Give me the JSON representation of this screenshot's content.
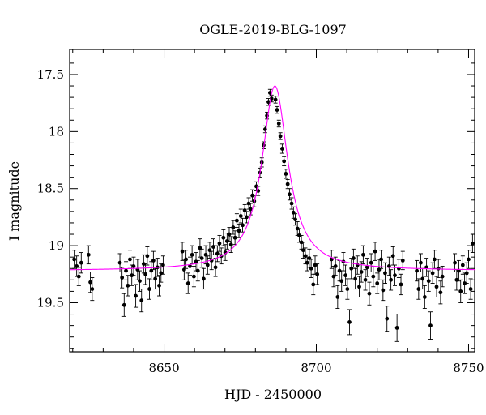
{
  "chart_data": {
    "type": "scatter",
    "title": "OGLE-2019-BLG-1097",
    "xlabel": "HJD - 2450000",
    "ylabel": "I magnitude",
    "xlim": [
      8619,
      8752
    ],
    "ylim": [
      19.93,
      17.28
    ],
    "y_inverted": true,
    "x_ticks": [
      8650,
      8700,
      8750
    ],
    "y_ticks": [
      17.5,
      18,
      18.5,
      19,
      19.5
    ],
    "x_tick_labels": [
      "8650",
      "8700",
      "8750"
    ],
    "y_tick_labels": [
      "17.5",
      "18",
      "18.5",
      "19",
      "19.5"
    ],
    "grid": false,
    "series": [
      {
        "kind": "points-with-errorbars",
        "color": "#000000",
        "points": [
          [
            8620.5,
            19.12,
            0.08
          ],
          [
            8621.3,
            19.18,
            0.09
          ],
          [
            8622.0,
            19.27,
            0.08
          ],
          [
            8622.8,
            19.15,
            0.09
          ],
          [
            8625.2,
            19.08,
            0.08
          ],
          [
            8625.8,
            19.32,
            0.09
          ],
          [
            8626.4,
            19.38,
            0.1
          ],
          [
            8635.5,
            19.15,
            0.08
          ],
          [
            8636.2,
            19.28,
            0.09
          ],
          [
            8636.9,
            19.52,
            0.1
          ],
          [
            8637.5,
            19.22,
            0.08
          ],
          [
            8638.1,
            19.35,
            0.09
          ],
          [
            8638.8,
            19.12,
            0.08
          ],
          [
            8639.4,
            19.26,
            0.09
          ],
          [
            8640.0,
            19.18,
            0.08
          ],
          [
            8640.7,
            19.44,
            0.1
          ],
          [
            8641.3,
            19.21,
            0.09
          ],
          [
            8642.0,
            19.31,
            0.09
          ],
          [
            8642.6,
            19.48,
            0.1
          ],
          [
            8643.3,
            19.16,
            0.08
          ],
          [
            8643.9,
            19.25,
            0.09
          ],
          [
            8644.5,
            19.09,
            0.08
          ],
          [
            8645.2,
            19.38,
            0.09
          ],
          [
            8645.8,
            19.22,
            0.08
          ],
          [
            8646.5,
            19.13,
            0.08
          ],
          [
            8647.1,
            19.29,
            0.09
          ],
          [
            8647.8,
            19.19,
            0.08
          ],
          [
            8648.4,
            19.35,
            0.09
          ],
          [
            8649.0,
            19.24,
            0.08
          ],
          [
            8649.7,
            19.17,
            0.08
          ],
          [
            8656.0,
            19.05,
            0.08
          ],
          [
            8656.6,
            19.21,
            0.09
          ],
          [
            8657.2,
            19.12,
            0.08
          ],
          [
            8657.9,
            19.33,
            0.09
          ],
          [
            8658.5,
            19.18,
            0.08
          ],
          [
            8659.2,
            19.08,
            0.08
          ],
          [
            8659.8,
            19.27,
            0.09
          ],
          [
            8660.5,
            19.14,
            0.08
          ],
          [
            8661.1,
            19.22,
            0.09
          ],
          [
            8661.8,
            19.02,
            0.08
          ],
          [
            8662.4,
            19.11,
            0.08
          ],
          [
            8663.0,
            19.29,
            0.09
          ],
          [
            8663.7,
            19.08,
            0.08
          ],
          [
            8664.3,
            19.17,
            0.08
          ],
          [
            8665.0,
            19.04,
            0.07
          ],
          [
            8665.6,
            19.13,
            0.08
          ],
          [
            8666.2,
            19.01,
            0.07
          ],
          [
            8666.9,
            19.19,
            0.08
          ],
          [
            8667.5,
            19.07,
            0.07
          ],
          [
            8668.2,
            18.98,
            0.07
          ],
          [
            8668.8,
            19.09,
            0.07
          ],
          [
            8669.5,
            18.93,
            0.07
          ],
          [
            8670.1,
            19.06,
            0.07
          ],
          [
            8670.7,
            18.96,
            0.07
          ],
          [
            8671.4,
            18.9,
            0.06
          ],
          [
            8672.0,
            18.99,
            0.07
          ],
          [
            8672.7,
            18.84,
            0.06
          ],
          [
            8673.3,
            18.93,
            0.06
          ],
          [
            8673.9,
            18.78,
            0.06
          ],
          [
            8674.6,
            18.87,
            0.06
          ],
          [
            8675.2,
            18.74,
            0.06
          ],
          [
            8675.8,
            18.82,
            0.06
          ],
          [
            8676.5,
            18.69,
            0.05
          ],
          [
            8677.1,
            18.75,
            0.05
          ],
          [
            8677.8,
            18.63,
            0.05
          ],
          [
            8678.4,
            18.68,
            0.05
          ],
          [
            8679.0,
            18.56,
            0.05
          ],
          [
            8679.6,
            18.61,
            0.05
          ],
          [
            8680.3,
            18.48,
            0.04
          ],
          [
            8680.9,
            18.52,
            0.04
          ],
          [
            8681.5,
            18.36,
            0.04
          ],
          [
            8682.1,
            18.27,
            0.04
          ],
          [
            8682.7,
            18.12,
            0.03
          ],
          [
            8683.2,
            17.98,
            0.03
          ],
          [
            8683.8,
            17.86,
            0.03
          ],
          [
            8684.3,
            17.74,
            0.03
          ],
          [
            8684.8,
            17.66,
            0.03
          ],
          [
            8685.3,
            17.71,
            0.03
          ],
          [
            8686.6,
            17.72,
            0.03
          ],
          [
            8687.1,
            17.81,
            0.03
          ],
          [
            8687.7,
            17.93,
            0.03
          ],
          [
            8688.2,
            18.04,
            0.03
          ],
          [
            8688.8,
            18.15,
            0.04
          ],
          [
            8689.4,
            18.26,
            0.04
          ],
          [
            8690.0,
            18.37,
            0.04
          ],
          [
            8690.6,
            18.46,
            0.04
          ],
          [
            8691.2,
            18.55,
            0.05
          ],
          [
            8691.9,
            18.63,
            0.05
          ],
          [
            8692.5,
            18.71,
            0.05
          ],
          [
            8693.1,
            18.77,
            0.05
          ],
          [
            8693.8,
            18.85,
            0.06
          ],
          [
            8694.4,
            18.91,
            0.06
          ],
          [
            8695.1,
            18.97,
            0.06
          ],
          [
            8695.7,
            19.04,
            0.07
          ],
          [
            8696.4,
            19.09,
            0.07
          ],
          [
            8697.0,
            19.15,
            0.07
          ],
          [
            8697.7,
            19.11,
            0.08
          ],
          [
            8698.3,
            19.2,
            0.08
          ],
          [
            8699.0,
            19.34,
            0.09
          ],
          [
            8699.6,
            19.17,
            0.08
          ],
          [
            8700.3,
            19.25,
            0.09
          ],
          [
            8705.0,
            19.12,
            0.08
          ],
          [
            8705.7,
            19.27,
            0.09
          ],
          [
            8706.3,
            19.18,
            0.08
          ],
          [
            8707.0,
            19.45,
            0.1
          ],
          [
            8707.6,
            19.22,
            0.09
          ],
          [
            8708.3,
            19.31,
            0.09
          ],
          [
            8708.9,
            19.14,
            0.08
          ],
          [
            8709.6,
            19.26,
            0.09
          ],
          [
            8710.2,
            19.38,
            0.09
          ],
          [
            8710.9,
            19.67,
            0.11
          ],
          [
            8711.5,
            19.2,
            0.09
          ],
          [
            8712.2,
            19.11,
            0.08
          ],
          [
            8712.8,
            19.29,
            0.09
          ],
          [
            8713.5,
            19.17,
            0.08
          ],
          [
            8714.1,
            19.36,
            0.09
          ],
          [
            8714.8,
            19.23,
            0.09
          ],
          [
            8715.4,
            19.08,
            0.08
          ],
          [
            8716.1,
            19.3,
            0.09
          ],
          [
            8716.7,
            19.19,
            0.08
          ],
          [
            8717.4,
            19.42,
            0.1
          ],
          [
            8718.0,
            19.15,
            0.08
          ],
          [
            8718.7,
            19.27,
            0.09
          ],
          [
            8719.3,
            19.05,
            0.08
          ],
          [
            8720.0,
            19.33,
            0.09
          ],
          [
            8720.6,
            19.21,
            0.09
          ],
          [
            8721.3,
            19.12,
            0.08
          ],
          [
            8721.9,
            19.39,
            0.09
          ],
          [
            8722.6,
            19.24,
            0.09
          ],
          [
            8723.2,
            19.64,
            0.11
          ],
          [
            8723.9,
            19.18,
            0.08
          ],
          [
            8724.5,
            19.3,
            0.09
          ],
          [
            8725.2,
            19.09,
            0.08
          ],
          [
            8725.8,
            19.26,
            0.09
          ],
          [
            8726.5,
            19.72,
            0.12
          ],
          [
            8727.1,
            19.2,
            0.08
          ],
          [
            8727.8,
            19.34,
            0.09
          ],
          [
            8728.4,
            19.13,
            0.08
          ],
          [
            8733.0,
            19.22,
            0.09
          ],
          [
            8733.6,
            19.38,
            0.09
          ],
          [
            8734.3,
            19.15,
            0.08
          ],
          [
            8734.9,
            19.29,
            0.09
          ],
          [
            8735.6,
            19.45,
            0.1
          ],
          [
            8736.2,
            19.19,
            0.08
          ],
          [
            8736.9,
            19.31,
            0.09
          ],
          [
            8737.5,
            19.7,
            0.12
          ],
          [
            8738.2,
            19.24,
            0.09
          ],
          [
            8738.8,
            19.12,
            0.08
          ],
          [
            8739.5,
            19.36,
            0.09
          ],
          [
            8740.1,
            19.2,
            0.08
          ],
          [
            8740.8,
            19.41,
            0.1
          ],
          [
            8741.4,
            19.27,
            0.09
          ],
          [
            8745.5,
            19.15,
            0.08
          ],
          [
            8746.1,
            19.3,
            0.09
          ],
          [
            8746.8,
            19.22,
            0.09
          ],
          [
            8747.4,
            19.4,
            0.1
          ],
          [
            8748.1,
            19.17,
            0.08
          ],
          [
            8748.7,
            19.33,
            0.09
          ],
          [
            8749.4,
            19.24,
            0.09
          ],
          [
            8750.0,
            19.12,
            0.08
          ],
          [
            8750.7,
            19.38,
            0.09
          ],
          [
            8751.3,
            18.98,
            0.08
          ]
        ]
      },
      {
        "kind": "model-curve",
        "color": "#ff00ff",
        "baseline": 19.22,
        "t0": 8686.4,
        "peak": 17.6,
        "width": 5.2
      }
    ]
  }
}
